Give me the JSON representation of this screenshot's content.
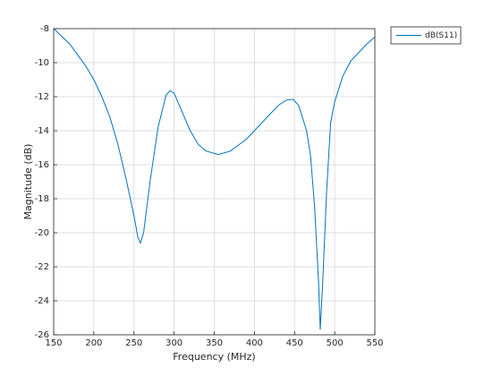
{
  "chart_data": {
    "type": "line",
    "x_label": "Frequency (MHz)",
    "y_label": "Magnitude (dB)",
    "x": [
      150,
      170,
      190,
      200,
      210,
      220,
      230,
      240,
      250,
      255,
      258,
      262,
      270,
      280,
      290,
      295,
      300,
      310,
      320,
      330,
      340,
      355,
      370,
      390,
      410,
      430,
      440,
      448,
      455,
      465,
      470,
      475,
      480,
      482,
      485,
      490,
      495,
      500,
      510,
      520,
      530,
      540,
      550
    ],
    "series": [
      {
        "name": "dB(S11)",
        "color": "#0072bd",
        "values": [
          -8.0,
          -8.9,
          -10.2,
          -11.0,
          -12.0,
          -13.2,
          -14.8,
          -16.8,
          -19.0,
          -20.3,
          -20.6,
          -20.0,
          -17.0,
          -13.8,
          -11.9,
          -11.65,
          -11.8,
          -12.9,
          -14.0,
          -14.8,
          -15.2,
          -15.4,
          -15.2,
          -14.5,
          -13.5,
          -12.5,
          -12.2,
          -12.15,
          -12.5,
          -14.0,
          -15.5,
          -18.5,
          -23.0,
          -25.7,
          -23.0,
          -17.5,
          -13.5,
          -12.3,
          -10.8,
          -9.9,
          -9.4,
          -8.9,
          -8.5
        ]
      }
    ],
    "xlim": [
      150,
      550
    ],
    "ylim": [
      -26,
      -8
    ],
    "xticks": [
      150,
      200,
      250,
      300,
      350,
      400,
      450,
      500,
      550
    ],
    "yticks": [
      -26,
      -24,
      -22,
      -20,
      -18,
      -16,
      -14,
      -12,
      -10,
      -8
    ],
    "grid": true,
    "legend": "outside-right"
  }
}
